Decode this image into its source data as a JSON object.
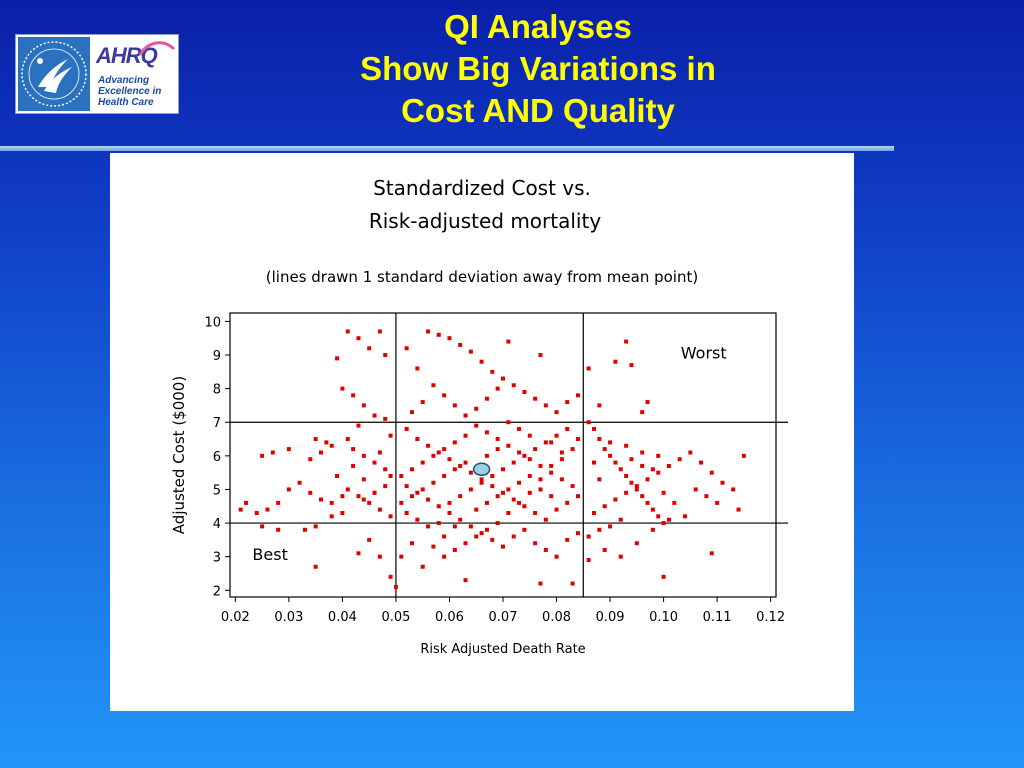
{
  "slide": {
    "title_lines": [
      "QI Analyses",
      "Show Big Variations in",
      "Cost AND Quality"
    ]
  },
  "logo": {
    "name": "AHRQ",
    "tagline_lines": [
      "Advancing",
      "Excellence in",
      "Health Care"
    ],
    "seal_icon": "hhs-seal-icon"
  },
  "colors": {
    "title": "#ffff00",
    "points": "#e00000",
    "mean_marker_fill": "#9ad0e0",
    "lines": "#000000"
  },
  "chart_data": {
    "type": "scatter",
    "title_lines": [
      "Standardized Cost vs.",
      "Risk-adjusted mortality"
    ],
    "subtitle": "(lines drawn 1 standard deviation away from mean point)",
    "xlabel": "Risk Adjusted Death Rate",
    "ylabel": "Adjusted Cost ($000)",
    "xlim": [
      0.019,
      0.121
    ],
    "ylim": [
      1.8,
      10.25
    ],
    "x_ticks": [
      0.02,
      0.03,
      0.04,
      0.05,
      0.06,
      0.07,
      0.08,
      0.09,
      0.1,
      0.11,
      0.12
    ],
    "x_tick_labels": [
      "0.02",
      "0.03",
      "0.04",
      "0.05",
      "0.06",
      "0.07",
      "0.08",
      "0.09",
      "0.10",
      "0.11",
      "0.12"
    ],
    "y_ticks": [
      2,
      3,
      4,
      5,
      6,
      7,
      8,
      9,
      10
    ],
    "y_tick_labels": [
      "2",
      "3",
      "4",
      "5",
      "6",
      "7",
      "8",
      "9",
      "10"
    ],
    "reference_lines": {
      "x": [
        0.05,
        0.085
      ],
      "y": [
        4,
        7
      ]
    },
    "mean_point": {
      "x": 0.066,
      "y": 5.6
    },
    "annotations": [
      {
        "text": "Worst",
        "x": 0.1075,
        "y": 8.9
      },
      {
        "text": "Best",
        "x": 0.0265,
        "y": 2.9
      }
    ],
    "grid": false,
    "series": [
      {
        "points": [
          [
            0.041,
            9.7
          ],
          [
            0.043,
            9.5
          ],
          [
            0.045,
            9.2
          ],
          [
            0.047,
            9.7
          ],
          [
            0.048,
            9.0
          ],
          [
            0.039,
            8.9
          ],
          [
            0.04,
            8.0
          ],
          [
            0.042,
            7.8
          ],
          [
            0.044,
            7.5
          ],
          [
            0.046,
            7.2
          ],
          [
            0.043,
            6.9
          ],
          [
            0.041,
            6.5
          ],
          [
            0.038,
            6.3
          ],
          [
            0.036,
            6.1
          ],
          [
            0.034,
            5.9
          ],
          [
            0.032,
            5.2
          ],
          [
            0.03,
            5.0
          ],
          [
            0.028,
            4.6
          ],
          [
            0.026,
            4.4
          ],
          [
            0.024,
            4.3
          ],
          [
            0.021,
            4.4
          ],
          [
            0.022,
            4.6
          ],
          [
            0.025,
            6.0
          ],
          [
            0.027,
            6.1
          ],
          [
            0.03,
            6.2
          ],
          [
            0.035,
            6.5
          ],
          [
            0.037,
            6.4
          ],
          [
            0.042,
            6.2
          ],
          [
            0.044,
            6.0
          ],
          [
            0.046,
            5.8
          ],
          [
            0.048,
            5.6
          ],
          [
            0.039,
            5.4
          ],
          [
            0.041,
            5.0
          ],
          [
            0.043,
            4.8
          ],
          [
            0.045,
            4.6
          ],
          [
            0.047,
            4.4
          ],
          [
            0.049,
            4.2
          ],
          [
            0.04,
            4.3
          ],
          [
            0.038,
            4.6
          ],
          [
            0.036,
            4.7
          ],
          [
            0.034,
            4.9
          ],
          [
            0.035,
            3.9
          ],
          [
            0.033,
            3.8
          ],
          [
            0.028,
            3.8
          ],
          [
            0.025,
            3.9
          ],
          [
            0.035,
            2.7
          ],
          [
            0.043,
            3.1
          ],
          [
            0.045,
            3.5
          ],
          [
            0.047,
            3.0
          ],
          [
            0.046,
            4.9
          ],
          [
            0.044,
            5.3
          ],
          [
            0.042,
            5.7
          ],
          [
            0.04,
            4.8
          ],
          [
            0.038,
            4.2
          ],
          [
            0.044,
            4.7
          ],
          [
            0.046,
            4.9
          ],
          [
            0.048,
            5.1
          ],
          [
            0.049,
            5.4
          ],
          [
            0.047,
            6.1
          ],
          [
            0.049,
            6.6
          ],
          [
            0.048,
            7.1
          ],
          [
            0.051,
            3.0
          ],
          [
            0.053,
            3.4
          ],
          [
            0.05,
            2.1
          ],
          [
            0.049,
            2.4
          ],
          [
            0.052,
            9.2
          ],
          [
            0.054,
            8.6
          ],
          [
            0.056,
            9.7
          ],
          [
            0.058,
            9.6
          ],
          [
            0.06,
            9.5
          ],
          [
            0.062,
            9.3
          ],
          [
            0.064,
            9.1
          ],
          [
            0.066,
            8.8
          ],
          [
            0.068,
            8.5
          ],
          [
            0.07,
            8.3
          ],
          [
            0.072,
            8.1
          ],
          [
            0.074,
            7.9
          ],
          [
            0.076,
            7.7
          ],
          [
            0.078,
            7.5
          ],
          [
            0.08,
            7.3
          ],
          [
            0.082,
            7.6
          ],
          [
            0.084,
            7.8
          ],
          [
            0.077,
            9.0
          ],
          [
            0.071,
            9.4
          ],
          [
            0.069,
            8.0
          ],
          [
            0.067,
            7.7
          ],
          [
            0.065,
            7.4
          ],
          [
            0.063,
            7.2
          ],
          [
            0.061,
            7.5
          ],
          [
            0.059,
            7.8
          ],
          [
            0.057,
            8.1
          ],
          [
            0.055,
            7.6
          ],
          [
            0.053,
            7.3
          ],
          [
            0.052,
            6.8
          ],
          [
            0.054,
            6.5
          ],
          [
            0.056,
            6.3
          ],
          [
            0.058,
            6.1
          ],
          [
            0.06,
            5.9
          ],
          [
            0.062,
            5.7
          ],
          [
            0.064,
            5.5
          ],
          [
            0.066,
            5.3
          ],
          [
            0.068,
            5.1
          ],
          [
            0.07,
            4.9
          ],
          [
            0.072,
            4.7
          ],
          [
            0.074,
            4.5
          ],
          [
            0.076,
            4.3
          ],
          [
            0.078,
            4.1
          ],
          [
            0.08,
            4.4
          ],
          [
            0.082,
            4.6
          ],
          [
            0.084,
            4.8
          ],
          [
            0.083,
            5.1
          ],
          [
            0.081,
            5.3
          ],
          [
            0.079,
            5.5
          ],
          [
            0.077,
            5.7
          ],
          [
            0.075,
            5.9
          ],
          [
            0.073,
            6.1
          ],
          [
            0.071,
            6.3
          ],
          [
            0.069,
            6.5
          ],
          [
            0.067,
            6.7
          ],
          [
            0.065,
            6.9
          ],
          [
            0.063,
            6.6
          ],
          [
            0.061,
            6.4
          ],
          [
            0.059,
            6.2
          ],
          [
            0.057,
            6.0
          ],
          [
            0.055,
            5.8
          ],
          [
            0.053,
            5.6
          ],
          [
            0.051,
            5.4
          ],
          [
            0.052,
            5.1
          ],
          [
            0.054,
            4.9
          ],
          [
            0.056,
            4.7
          ],
          [
            0.058,
            4.5
          ],
          [
            0.06,
            4.3
          ],
          [
            0.062,
            4.1
          ],
          [
            0.064,
            3.9
          ],
          [
            0.066,
            3.7
          ],
          [
            0.068,
            3.5
          ],
          [
            0.07,
            3.3
          ],
          [
            0.072,
            3.6
          ],
          [
            0.074,
            3.8
          ],
          [
            0.076,
            3.4
          ],
          [
            0.078,
            3.2
          ],
          [
            0.08,
            3.0
          ],
          [
            0.082,
            3.5
          ],
          [
            0.084,
            3.7
          ],
          [
            0.083,
            2.2
          ],
          [
            0.077,
            2.2
          ],
          [
            0.063,
            2.3
          ],
          [
            0.055,
            2.7
          ],
          [
            0.057,
            3.3
          ],
          [
            0.059,
            3.6
          ],
          [
            0.061,
            3.9
          ],
          [
            0.065,
            4.4
          ],
          [
            0.067,
            4.6
          ],
          [
            0.069,
            4.8
          ],
          [
            0.071,
            5.0
          ],
          [
            0.073,
            5.2
          ],
          [
            0.075,
            5.4
          ],
          [
            0.077,
            5.0
          ],
          [
            0.079,
            4.8
          ],
          [
            0.081,
            5.9
          ],
          [
            0.083,
            6.2
          ],
          [
            0.079,
            6.4
          ],
          [
            0.075,
            6.6
          ],
          [
            0.073,
            6.8
          ],
          [
            0.071,
            7.0
          ],
          [
            0.069,
            6.2
          ],
          [
            0.067,
            6.0
          ],
          [
            0.063,
            5.8
          ],
          [
            0.061,
            5.6
          ],
          [
            0.059,
            5.4
          ],
          [
            0.057,
            5.2
          ],
          [
            0.055,
            5.0
          ],
          [
            0.053,
            4.8
          ],
          [
            0.051,
            4.6
          ],
          [
            0.052,
            4.3
          ],
          [
            0.054,
            4.1
          ],
          [
            0.056,
            3.9
          ],
          [
            0.058,
            4.0
          ],
          [
            0.06,
            4.6
          ],
          [
            0.062,
            4.8
          ],
          [
            0.064,
            5.0
          ],
          [
            0.066,
            5.2
          ],
          [
            0.068,
            5.4
          ],
          [
            0.07,
            5.6
          ],
          [
            0.072,
            5.8
          ],
          [
            0.074,
            6.0
          ],
          [
            0.076,
            6.2
          ],
          [
            0.078,
            6.4
          ],
          [
            0.08,
            6.6
          ],
          [
            0.082,
            6.8
          ],
          [
            0.084,
            6.5
          ],
          [
            0.081,
            6.1
          ],
          [
            0.079,
            5.7
          ],
          [
            0.077,
            5.3
          ],
          [
            0.075,
            4.9
          ],
          [
            0.073,
            4.6
          ],
          [
            0.071,
            4.3
          ],
          [
            0.069,
            4.0
          ],
          [
            0.067,
            3.8
          ],
          [
            0.065,
            3.6
          ],
          [
            0.063,
            3.4
          ],
          [
            0.061,
            3.2
          ],
          [
            0.059,
            3.0
          ],
          [
            0.086,
            7.0
          ],
          [
            0.087,
            6.8
          ],
          [
            0.088,
            6.5
          ],
          [
            0.089,
            6.2
          ],
          [
            0.09,
            6.0
          ],
          [
            0.091,
            5.8
          ],
          [
            0.092,
            5.6
          ],
          [
            0.093,
            5.4
          ],
          [
            0.094,
            5.2
          ],
          [
            0.095,
            5.0
          ],
          [
            0.096,
            4.8
          ],
          [
            0.097,
            4.6
          ],
          [
            0.098,
            4.4
          ],
          [
            0.099,
            4.2
          ],
          [
            0.1,
            4.0
          ],
          [
            0.087,
            4.3
          ],
          [
            0.089,
            4.5
          ],
          [
            0.091,
            4.7
          ],
          [
            0.093,
            4.9
          ],
          [
            0.095,
            5.1
          ],
          [
            0.097,
            5.3
          ],
          [
            0.099,
            5.5
          ],
          [
            0.101,
            5.7
          ],
          [
            0.103,
            5.9
          ],
          [
            0.105,
            6.1
          ],
          [
            0.107,
            5.8
          ],
          [
            0.109,
            5.5
          ],
          [
            0.111,
            5.2
          ],
          [
            0.113,
            5.0
          ],
          [
            0.115,
            6.0
          ],
          [
            0.114,
            4.4
          ],
          [
            0.11,
            4.6
          ],
          [
            0.108,
            4.8
          ],
          [
            0.106,
            5.0
          ],
          [
            0.104,
            4.2
          ],
          [
            0.102,
            4.6
          ],
          [
            0.1,
            4.9
          ],
          [
            0.098,
            5.6
          ],
          [
            0.096,
            6.1
          ],
          [
            0.094,
            5.9
          ],
          [
            0.092,
            4.1
          ],
          [
            0.09,
            3.9
          ],
          [
            0.088,
            3.8
          ],
          [
            0.086,
            3.6
          ],
          [
            0.089,
            3.2
          ],
          [
            0.092,
            3.0
          ],
          [
            0.095,
            3.4
          ],
          [
            0.098,
            3.8
          ],
          [
            0.101,
            4.1
          ],
          [
            0.109,
            3.1
          ],
          [
            0.1,
            2.4
          ],
          [
            0.086,
            8.6
          ],
          [
            0.088,
            7.5
          ],
          [
            0.091,
            8.8
          ],
          [
            0.094,
            8.7
          ],
          [
            0.097,
            7.6
          ],
          [
            0.093,
            9.4
          ],
          [
            0.096,
            7.3
          ],
          [
            0.086,
            2.9
          ],
          [
            0.088,
            5.3
          ],
          [
            0.087,
            5.8
          ],
          [
            0.09,
            6.4
          ],
          [
            0.093,
            6.3
          ],
          [
            0.096,
            5.7
          ],
          [
            0.099,
            6.0
          ]
        ]
      }
    ]
  }
}
